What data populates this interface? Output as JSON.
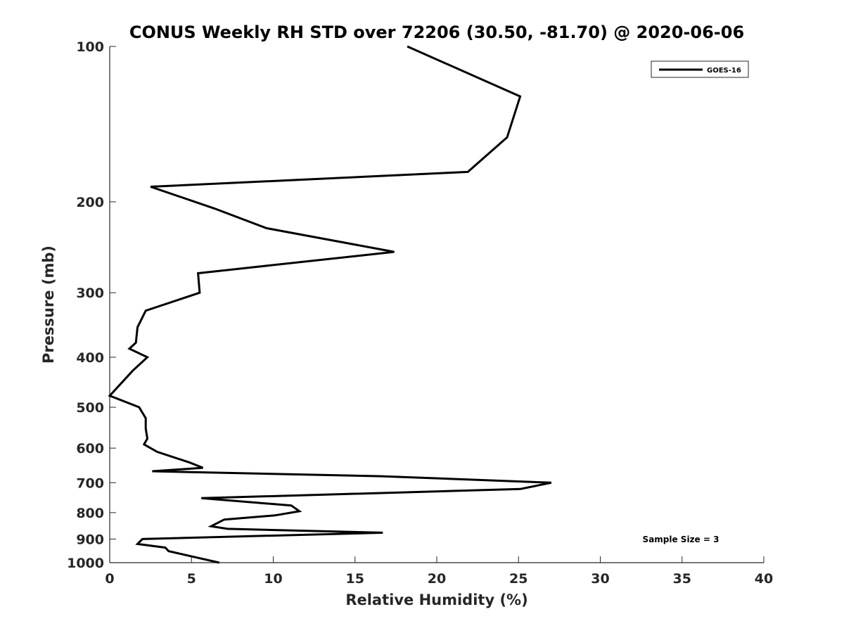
{
  "chart_data": {
    "type": "line",
    "title": "CONUS Weekly RH STD over 72206 (30.50, -81.70) @ 2020-06-06",
    "xlabel": "Relative Humidity (%)",
    "ylabel": "Pressure (mb)",
    "xlim": [
      0,
      40
    ],
    "ylim": [
      100,
      1000
    ],
    "y_scale": "log",
    "y_reversed": true,
    "x_ticks": [
      "0",
      "5",
      "10",
      "15",
      "20",
      "25",
      "30",
      "35",
      "40"
    ],
    "y_ticks": [
      "100",
      "200",
      "300",
      "400",
      "500",
      "600",
      "700",
      "800",
      "900",
      "1000"
    ],
    "grid": false,
    "legend_position": "top-right",
    "annotation": "Sample Size = 3",
    "line_color": "#000000",
    "series": [
      {
        "name": "GOES-16",
        "x": [
          18.2,
          25.1,
          24.3,
          21.9,
          2.5,
          6.4,
          9.6,
          17.4,
          5.4,
          5.5,
          2.2,
          1.7,
          1.6,
          1.2,
          2.3,
          1.4,
          0.0,
          1.8,
          2.2,
          2.2,
          2.3,
          2.1,
          2.9,
          4.9,
          5.7,
          2.6,
          16.6,
          27.0,
          25.1,
          5.6,
          11.1,
          11.6,
          10.1,
          7.0,
          6.2,
          7.2,
          16.7,
          2.0,
          1.7,
          3.4,
          3.6,
          6.7
        ],
        "y": [
          100,
          125,
          150,
          175,
          187,
          206,
          225,
          250,
          275,
          300,
          325,
          350,
          375,
          385,
          400,
          425,
          475,
          500,
          525,
          550,
          575,
          590,
          610,
          640,
          655,
          665,
          680,
          700,
          720,
          750,
          775,
          795,
          810,
          825,
          850,
          860,
          875,
          900,
          920,
          935,
          950,
          1000
        ]
      }
    ]
  }
}
